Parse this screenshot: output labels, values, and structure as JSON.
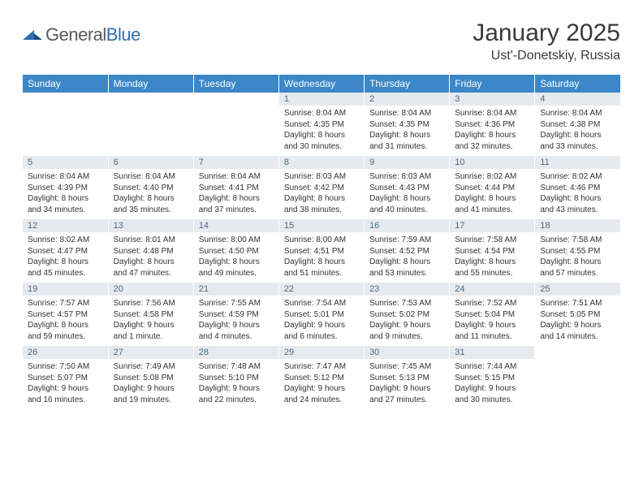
{
  "logo": {
    "text_general": "General",
    "text_blue": "Blue"
  },
  "title": {
    "month": "January 2025",
    "location": "Ust'-Donetskiy, Russia"
  },
  "colors": {
    "header_bg": "#3b87c8",
    "header_fg": "#ffffff",
    "daynum_bg": "#e6eaee",
    "daynum_fg": "#4a6a88",
    "text": "#333333",
    "page_bg": "#ffffff",
    "logo_grey": "#5a5a5a",
    "logo_blue": "#2f6fb5"
  },
  "weekdays": [
    "Sunday",
    "Monday",
    "Tuesday",
    "Wednesday",
    "Thursday",
    "Friday",
    "Saturday"
  ],
  "weeks": [
    [
      {
        "empty": true
      },
      {
        "empty": true
      },
      {
        "empty": true
      },
      {
        "day": "1",
        "l1": "Sunrise: 8:04 AM",
        "l2": "Sunset: 4:35 PM",
        "l3": "Daylight: 8 hours",
        "l4": "and 30 minutes."
      },
      {
        "day": "2",
        "l1": "Sunrise: 8:04 AM",
        "l2": "Sunset: 4:35 PM",
        "l3": "Daylight: 8 hours",
        "l4": "and 31 minutes."
      },
      {
        "day": "3",
        "l1": "Sunrise: 8:04 AM",
        "l2": "Sunset: 4:36 PM",
        "l3": "Daylight: 8 hours",
        "l4": "and 32 minutes."
      },
      {
        "day": "4",
        "l1": "Sunrise: 8:04 AM",
        "l2": "Sunset: 4:38 PM",
        "l3": "Daylight: 8 hours",
        "l4": "and 33 minutes."
      }
    ],
    [
      {
        "day": "5",
        "l1": "Sunrise: 8:04 AM",
        "l2": "Sunset: 4:39 PM",
        "l3": "Daylight: 8 hours",
        "l4": "and 34 minutes."
      },
      {
        "day": "6",
        "l1": "Sunrise: 8:04 AM",
        "l2": "Sunset: 4:40 PM",
        "l3": "Daylight: 8 hours",
        "l4": "and 35 minutes."
      },
      {
        "day": "7",
        "l1": "Sunrise: 8:04 AM",
        "l2": "Sunset: 4:41 PM",
        "l3": "Daylight: 8 hours",
        "l4": "and 37 minutes."
      },
      {
        "day": "8",
        "l1": "Sunrise: 8:03 AM",
        "l2": "Sunset: 4:42 PM",
        "l3": "Daylight: 8 hours",
        "l4": "and 38 minutes."
      },
      {
        "day": "9",
        "l1": "Sunrise: 8:03 AM",
        "l2": "Sunset: 4:43 PM",
        "l3": "Daylight: 8 hours",
        "l4": "and 40 minutes."
      },
      {
        "day": "10",
        "l1": "Sunrise: 8:02 AM",
        "l2": "Sunset: 4:44 PM",
        "l3": "Daylight: 8 hours",
        "l4": "and 41 minutes."
      },
      {
        "day": "11",
        "l1": "Sunrise: 8:02 AM",
        "l2": "Sunset: 4:46 PM",
        "l3": "Daylight: 8 hours",
        "l4": "and 43 minutes."
      }
    ],
    [
      {
        "day": "12",
        "l1": "Sunrise: 8:02 AM",
        "l2": "Sunset: 4:47 PM",
        "l3": "Daylight: 8 hours",
        "l4": "and 45 minutes."
      },
      {
        "day": "13",
        "l1": "Sunrise: 8:01 AM",
        "l2": "Sunset: 4:48 PM",
        "l3": "Daylight: 8 hours",
        "l4": "and 47 minutes."
      },
      {
        "day": "14",
        "l1": "Sunrise: 8:00 AM",
        "l2": "Sunset: 4:50 PM",
        "l3": "Daylight: 8 hours",
        "l4": "and 49 minutes."
      },
      {
        "day": "15",
        "l1": "Sunrise: 8:00 AM",
        "l2": "Sunset: 4:51 PM",
        "l3": "Daylight: 8 hours",
        "l4": "and 51 minutes."
      },
      {
        "day": "16",
        "l1": "Sunrise: 7:59 AM",
        "l2": "Sunset: 4:52 PM",
        "l3": "Daylight: 8 hours",
        "l4": "and 53 minutes."
      },
      {
        "day": "17",
        "l1": "Sunrise: 7:58 AM",
        "l2": "Sunset: 4:54 PM",
        "l3": "Daylight: 8 hours",
        "l4": "and 55 minutes."
      },
      {
        "day": "18",
        "l1": "Sunrise: 7:58 AM",
        "l2": "Sunset: 4:55 PM",
        "l3": "Daylight: 8 hours",
        "l4": "and 57 minutes."
      }
    ],
    [
      {
        "day": "19",
        "l1": "Sunrise: 7:57 AM",
        "l2": "Sunset: 4:57 PM",
        "l3": "Daylight: 8 hours",
        "l4": "and 59 minutes."
      },
      {
        "day": "20",
        "l1": "Sunrise: 7:56 AM",
        "l2": "Sunset: 4:58 PM",
        "l3": "Daylight: 9 hours",
        "l4": "and 1 minute."
      },
      {
        "day": "21",
        "l1": "Sunrise: 7:55 AM",
        "l2": "Sunset: 4:59 PM",
        "l3": "Daylight: 9 hours",
        "l4": "and 4 minutes."
      },
      {
        "day": "22",
        "l1": "Sunrise: 7:54 AM",
        "l2": "Sunset: 5:01 PM",
        "l3": "Daylight: 9 hours",
        "l4": "and 6 minutes."
      },
      {
        "day": "23",
        "l1": "Sunrise: 7:53 AM",
        "l2": "Sunset: 5:02 PM",
        "l3": "Daylight: 9 hours",
        "l4": "and 9 minutes."
      },
      {
        "day": "24",
        "l1": "Sunrise: 7:52 AM",
        "l2": "Sunset: 5:04 PM",
        "l3": "Daylight: 9 hours",
        "l4": "and 11 minutes."
      },
      {
        "day": "25",
        "l1": "Sunrise: 7:51 AM",
        "l2": "Sunset: 5:05 PM",
        "l3": "Daylight: 9 hours",
        "l4": "and 14 minutes."
      }
    ],
    [
      {
        "day": "26",
        "l1": "Sunrise: 7:50 AM",
        "l2": "Sunset: 5:07 PM",
        "l3": "Daylight: 9 hours",
        "l4": "and 16 minutes."
      },
      {
        "day": "27",
        "l1": "Sunrise: 7:49 AM",
        "l2": "Sunset: 5:08 PM",
        "l3": "Daylight: 9 hours",
        "l4": "and 19 minutes."
      },
      {
        "day": "28",
        "l1": "Sunrise: 7:48 AM",
        "l2": "Sunset: 5:10 PM",
        "l3": "Daylight: 9 hours",
        "l4": "and 22 minutes."
      },
      {
        "day": "29",
        "l1": "Sunrise: 7:47 AM",
        "l2": "Sunset: 5:12 PM",
        "l3": "Daylight: 9 hours",
        "l4": "and 24 minutes."
      },
      {
        "day": "30",
        "l1": "Sunrise: 7:45 AM",
        "l2": "Sunset: 5:13 PM",
        "l3": "Daylight: 9 hours",
        "l4": "and 27 minutes."
      },
      {
        "day": "31",
        "l1": "Sunrise: 7:44 AM",
        "l2": "Sunset: 5:15 PM",
        "l3": "Daylight: 9 hours",
        "l4": "and 30 minutes."
      },
      {
        "empty": true
      }
    ]
  ]
}
